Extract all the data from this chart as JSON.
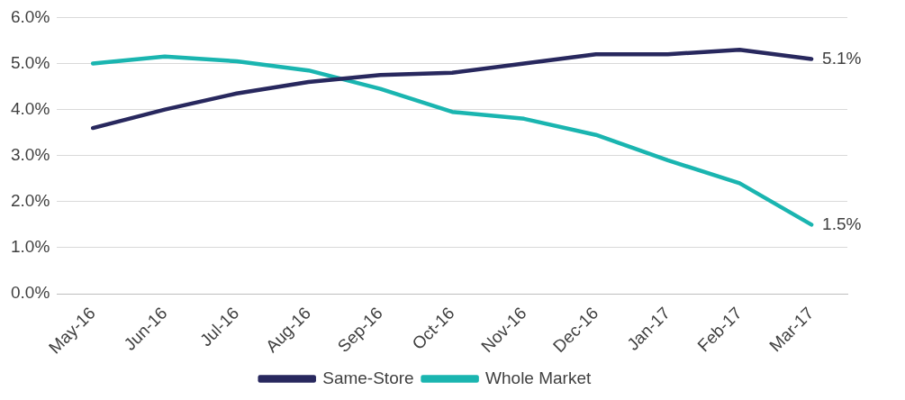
{
  "chart_data": {
    "type": "line",
    "categories": [
      "May-16",
      "Jun-16",
      "Jul-16",
      "Aug-16",
      "Sep-16",
      "Oct-16",
      "Nov-16",
      "Dec-16",
      "Jan-17",
      "Feb-17",
      "Mar-17"
    ],
    "series": [
      {
        "name": "Same-Store",
        "color": "#28285e",
        "values": [
          3.6,
          4.0,
          4.35,
          4.6,
          4.75,
          4.8,
          5.0,
          5.2,
          5.2,
          5.3,
          5.1
        ],
        "value_labels": [
          null,
          null,
          null,
          null,
          null,
          null,
          null,
          null,
          null,
          null,
          "5.1%"
        ]
      },
      {
        "name": "Whole Market",
        "color": "#1ab5b0",
        "values": [
          5.0,
          5.15,
          5.05,
          4.85,
          4.45,
          3.95,
          3.8,
          3.45,
          2.9,
          2.4,
          1.5
        ],
        "value_labels": [
          null,
          null,
          null,
          null,
          null,
          null,
          null,
          null,
          null,
          null,
          "1.5%"
        ]
      }
    ],
    "ylim": [
      0,
      6
    ],
    "yticks": [
      {
        "value": 0,
        "label": "0.0%"
      },
      {
        "value": 1,
        "label": "1.0%"
      },
      {
        "value": 2,
        "label": "2.0%"
      },
      {
        "value": 3,
        "label": "3.0%"
      },
      {
        "value": 4,
        "label": "4.0%"
      },
      {
        "value": 5,
        "label": "5.0%"
      },
      {
        "value": 6,
        "label": "6.0%"
      }
    ],
    "grid": "y",
    "legend": "bottom",
    "marker": "none",
    "line_style": "solid"
  }
}
